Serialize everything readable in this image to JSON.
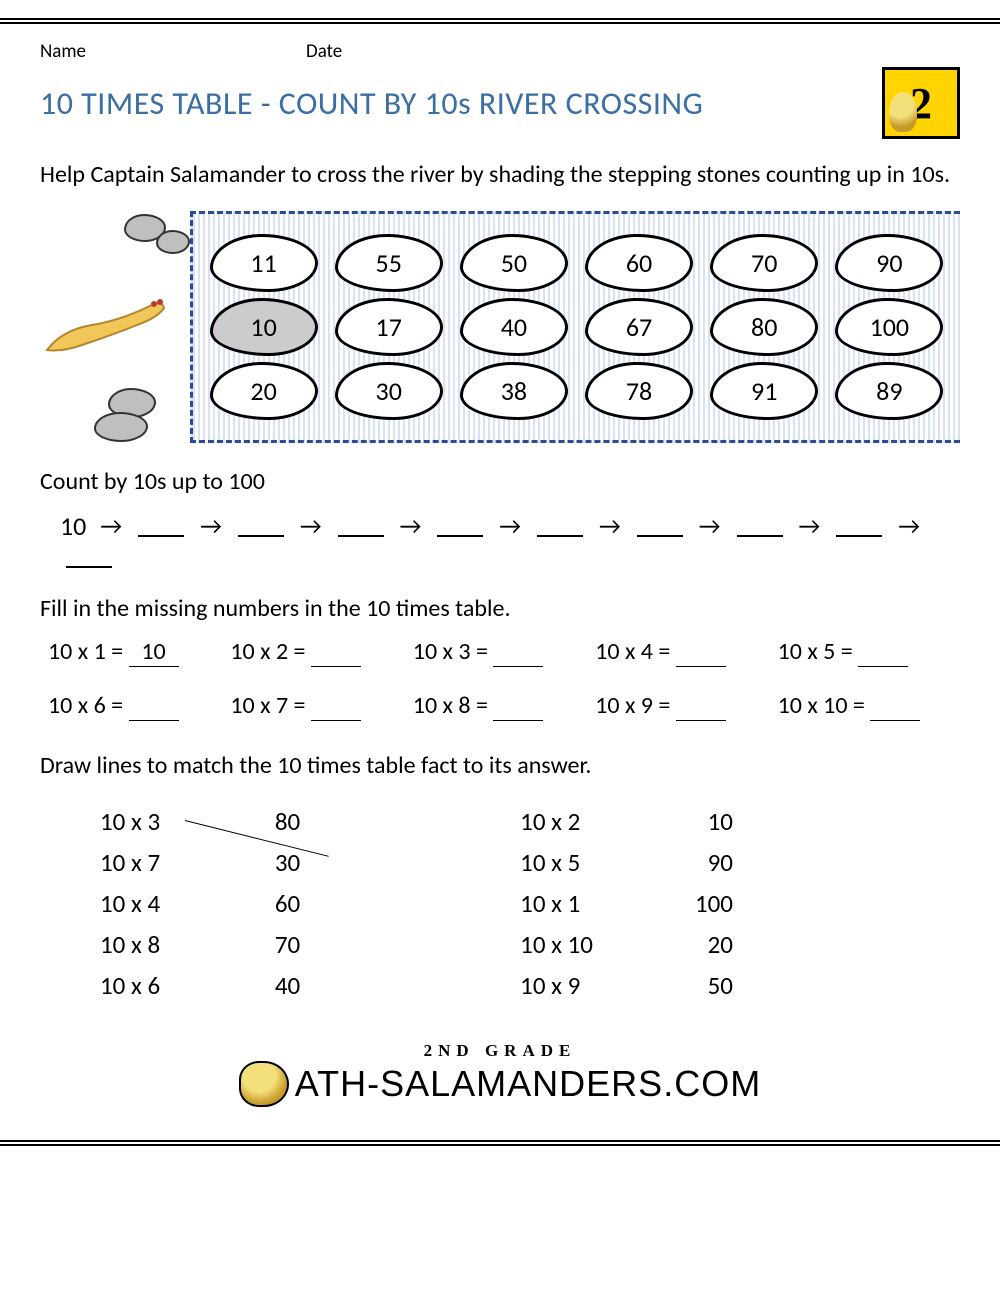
{
  "header": {
    "name_label": "Name",
    "date_label": "Date",
    "title": "10 TIMES TABLE - COUNT BY 10s RIVER CROSSING",
    "logo_number": "2",
    "title_color": "#3a6ea5",
    "logo_bg": "#ffd400"
  },
  "instructions": "Help Captain Salamander to cross the river by shading the stepping stones counting up in 10s.",
  "river": {
    "border_color": "#2a4a9a",
    "stone_bg": "#ffffff",
    "stone_shaded_bg": "#cccccc",
    "rows": [
      [
        {
          "value": "11",
          "shaded": false
        },
        {
          "value": "55",
          "shaded": false
        },
        {
          "value": "50",
          "shaded": false
        },
        {
          "value": "60",
          "shaded": false
        },
        {
          "value": "70",
          "shaded": false
        },
        {
          "value": "90",
          "shaded": false
        }
      ],
      [
        {
          "value": "10",
          "shaded": true
        },
        {
          "value": "17",
          "shaded": false
        },
        {
          "value": "40",
          "shaded": false
        },
        {
          "value": "67",
          "shaded": false
        },
        {
          "value": "80",
          "shaded": false
        },
        {
          "value": "100",
          "shaded": false
        }
      ],
      [
        {
          "value": "20",
          "shaded": false
        },
        {
          "value": "30",
          "shaded": false
        },
        {
          "value": "38",
          "shaded": false
        },
        {
          "value": "78",
          "shaded": false
        },
        {
          "value": "91",
          "shaded": false
        },
        {
          "value": "89",
          "shaded": false
        }
      ]
    ]
  },
  "count_section": {
    "label": "Count by 10s up to 100",
    "start": "10",
    "blanks": 9,
    "arrow": "→"
  },
  "fill_section": {
    "label": "Fill in the missing numbers in the 10 times table.",
    "items": [
      {
        "expr": "10 x 1 =",
        "ans": "10"
      },
      {
        "expr": "10 x 2 =",
        "ans": ""
      },
      {
        "expr": "10 x 3 =",
        "ans": ""
      },
      {
        "expr": "10 x 4 =",
        "ans": ""
      },
      {
        "expr": "10 x 5 =",
        "ans": ""
      },
      {
        "expr": "10 x 6 =",
        "ans": ""
      },
      {
        "expr": "10 x 7 =",
        "ans": ""
      },
      {
        "expr": "10 x 8 =",
        "ans": ""
      },
      {
        "expr": "10 x 9 =",
        "ans": ""
      },
      {
        "expr": "10 x 10 =",
        "ans": ""
      }
    ]
  },
  "match_section": {
    "label": "Draw lines to match the 10 times table fact to its answer.",
    "left_facts": [
      "10 x 3",
      "10 x 7",
      "10 x 4",
      "10 x 8",
      "10 x 6"
    ],
    "left_answers": [
      "80",
      "30",
      "60",
      "70",
      "40"
    ],
    "right_facts": [
      "10 x 2",
      "10 x 5",
      "10 x 1",
      "10 x 10",
      "10 x 9"
    ],
    "right_answers": [
      "10",
      "90",
      "100",
      "20",
      "50"
    ],
    "example_line": {
      "from_row": 0,
      "to_row": 1
    }
  },
  "footer": {
    "sub": "2ND GRADE",
    "main": "ATH-SALAMANDERS.COM",
    "prefix_icon": "M"
  }
}
